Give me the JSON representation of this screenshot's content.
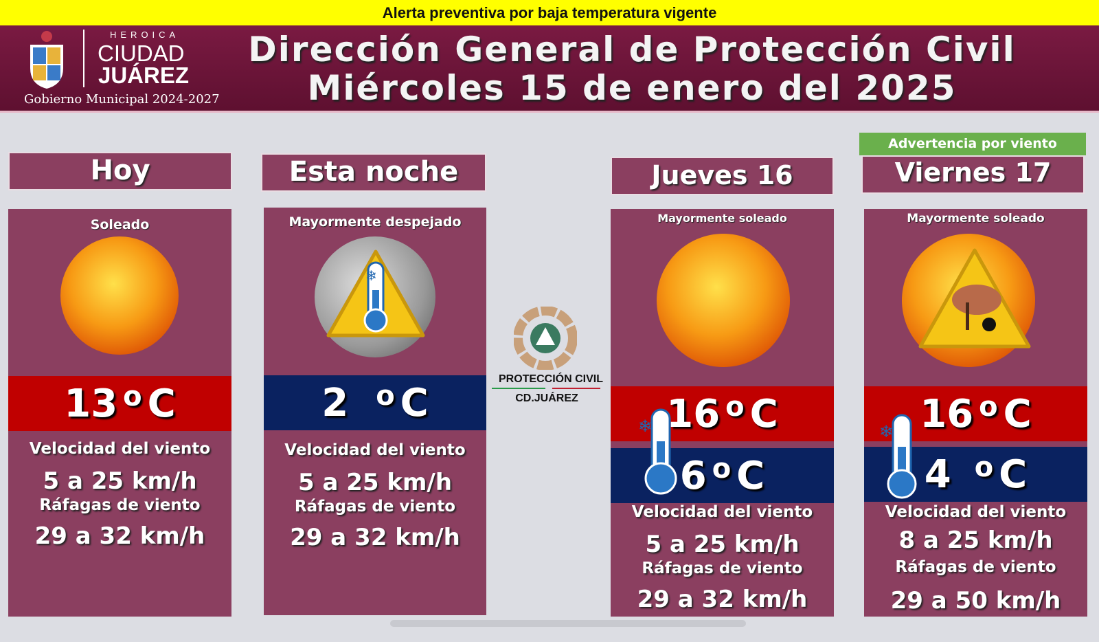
{
  "alert": "Alerta preventiva por baja temperatura vigente",
  "header": {
    "logo": {
      "line1": "HEROICA",
      "line2": "CIUDAD",
      "line3": "JUÁREZ",
      "gov": "Gobierno Municipal 2024-2027"
    },
    "title1": "Dirección General de Protección Civil",
    "title2": "Miércoles 15 de enero del 2025"
  },
  "center_logo": {
    "line1": "PROTECCIÓN CIVIL",
    "line2": "CD.JUÁREZ"
  },
  "colors": {
    "panel": "#8b3f60",
    "header": "#6e1636",
    "alert": "#ffff00",
    "high_band": "#c00000",
    "low_band": "#0a2260",
    "warning": "#6ab04c"
  },
  "days": [
    {
      "title": "Hoy",
      "condition": "Soleado",
      "icon": "sun-icon",
      "high": "13",
      "unit": "C",
      "wind_label": "Velocidad del viento",
      "wind": "5 a 25 km/h",
      "gust_label": "Ráfagas de viento",
      "gust": "29 a 32 km/h"
    },
    {
      "title": "Esta noche",
      "condition": "Mayormente despejado",
      "icon": "moon-cold-warning-icon",
      "low": "2",
      "unit": "C",
      "wind_label": "Velocidad del viento",
      "wind": "5 a 25 km/h",
      "gust_label": "Ráfagas de viento",
      "gust": "29 a 32 km/h"
    },
    {
      "title": "Jueves 16",
      "condition": "Mayormente soleado",
      "icon": "sun-icon",
      "high": "16",
      "low": "6",
      "unit": "C",
      "wind_label": "Velocidad del viento",
      "wind": "5 a 25 km/h",
      "gust_label": "Ráfagas de viento",
      "gust": "29 a 32 km/h"
    },
    {
      "title": "Viernes 17",
      "warning": "Advertencia por viento",
      "condition": "Mayormente soleado",
      "icon": "sun-wind-warning-icon",
      "high": "16",
      "low": "4",
      "unit": "C",
      "wind_label": "Velocidad del viento",
      "wind": "8 a 25 km/h",
      "gust_label": "Ráfagas de viento",
      "gust": "29 a 50 km/h"
    }
  ]
}
